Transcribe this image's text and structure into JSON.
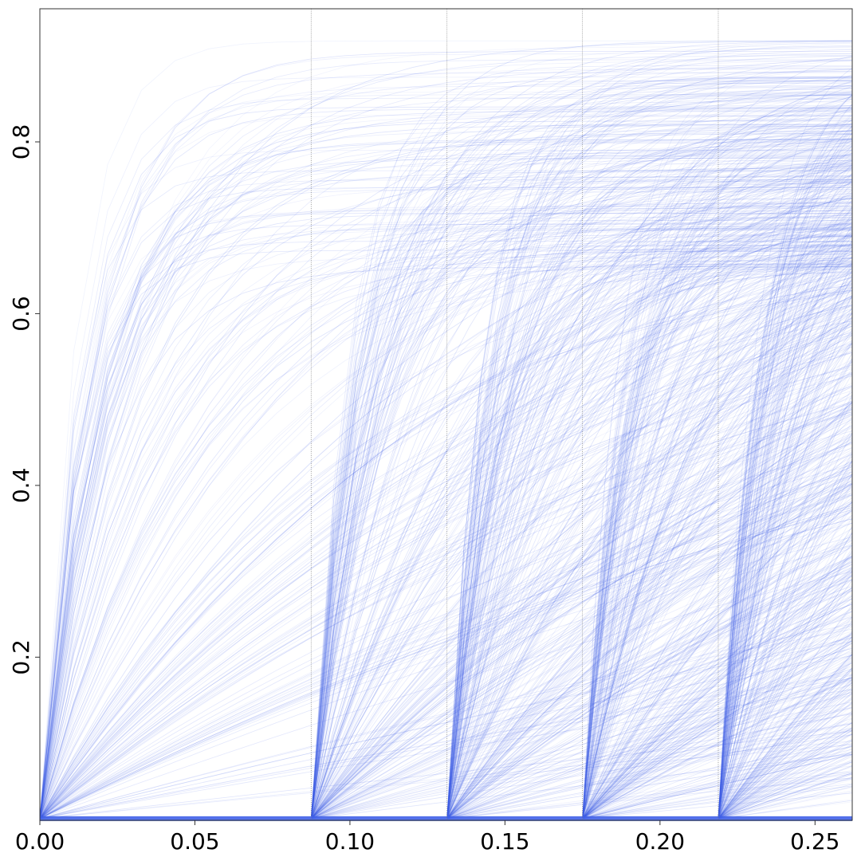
{
  "chart_data": {
    "type": "line",
    "title": "",
    "xlabel": "",
    "ylabel": "",
    "xlim": [
      0.0,
      0.262
    ],
    "ylim": [
      0.01,
      0.955
    ],
    "grid": false,
    "line_color": "#4060E8",
    "breakpoint_line_color": "#888888",
    "x_ticks": [
      {
        "value": 0.0,
        "label": "0.00"
      },
      {
        "value": 0.05,
        "label": "0.05"
      },
      {
        "value": 0.1,
        "label": "0.10"
      },
      {
        "value": 0.15,
        "label": "0.15"
      },
      {
        "value": 0.2,
        "label": "0.20"
      },
      {
        "value": 0.25,
        "label": "0.25"
      }
    ],
    "y_ticks": [
      {
        "value": 0.2,
        "label": "0.2"
      },
      {
        "value": 0.4,
        "label": "0.4"
      },
      {
        "value": 0.6,
        "label": "0.6"
      },
      {
        "value": 0.8,
        "label": "0.8"
      }
    ],
    "breakpoints": [
      0.0875,
      0.1313,
      0.175,
      0.2188
    ],
    "segment_starts": [
      0.0,
      0.0875,
      0.1313,
      0.175,
      0.2188
    ],
    "x_end": 0.262,
    "y_baseline": 0.012,
    "asymptote_range": [
      0.65,
      0.92
    ],
    "trajectory_count": 1200
  }
}
